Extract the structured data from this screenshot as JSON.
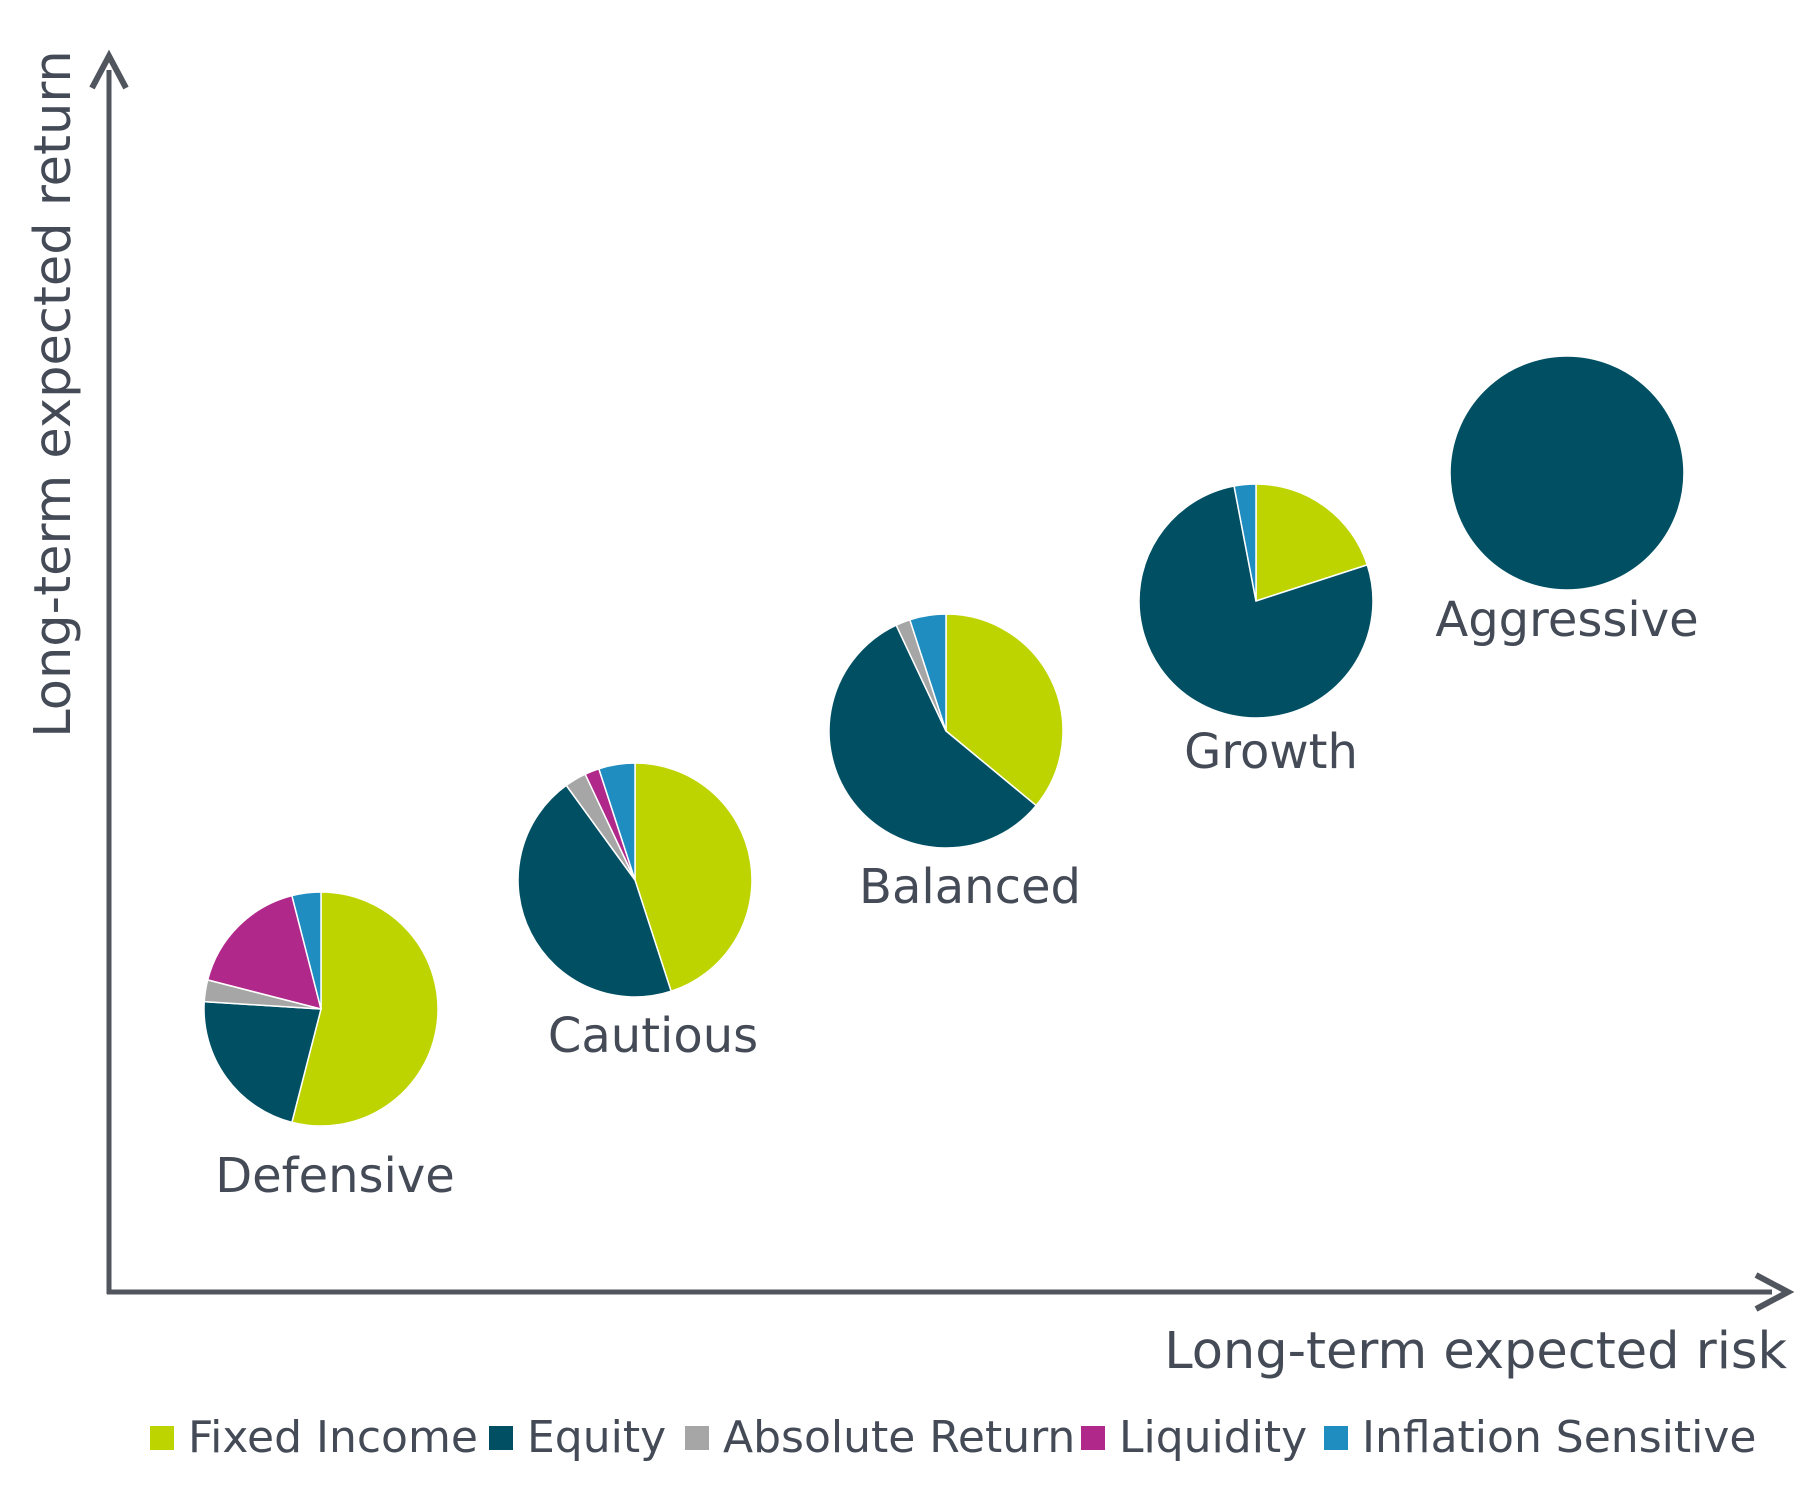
{
  "chart_data": {
    "type": "pie",
    "xlabel": "Long-term expected risk",
    "ylabel": "Long-term expected return",
    "grid": false,
    "legend_position": "bottom",
    "categories": [
      "Fixed Income",
      "Equity",
      "Absolute Return",
      "Liquidity",
      "Inflation Sensitive"
    ],
    "colors": {
      "Fixed Income": "#bdd400",
      "Equity": "#004f63",
      "Absolute Return": "#a6a6a6",
      "Liquidity": "#b0288a",
      "Inflation Sensitive": "#1f8dbf"
    },
    "axis_color": "#51565e",
    "text_color": "#444b57",
    "portfolios": [
      {
        "name": "Defensive",
        "values": [
          54,
          22,
          3,
          17,
          4
        ]
      },
      {
        "name": "Cautious",
        "values": [
          45,
          45,
          3,
          2,
          5
        ]
      },
      {
        "name": "Balanced",
        "values": [
          36,
          57,
          2,
          0,
          5
        ]
      },
      {
        "name": "Growth",
        "values": [
          20,
          77,
          0,
          0,
          3
        ]
      },
      {
        "name": "Aggressive",
        "values": [
          0,
          100,
          0,
          0,
          0
        ]
      }
    ]
  }
}
